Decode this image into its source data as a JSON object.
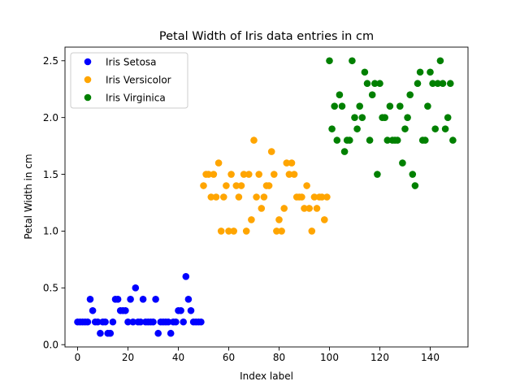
{
  "chart_data": {
    "type": "scatter",
    "title": "Petal Width of Iris data entries in cm",
    "xlabel": "Index label",
    "ylabel": "Petal Width in cm",
    "xlim": [
      -5,
      155
    ],
    "ylim": [
      -0.02,
      2.62
    ],
    "xticks": [
      0,
      20,
      40,
      60,
      80,
      100,
      120,
      140
    ],
    "yticks": [
      0.0,
      0.5,
      1.0,
      1.5,
      2.0,
      2.5
    ],
    "grid": false,
    "legend": "top-left",
    "series": [
      {
        "name": "Iris Setosa",
        "color": "#0000ff",
        "x": [
          0,
          1,
          2,
          3,
          4,
          5,
          6,
          7,
          8,
          9,
          10,
          11,
          12,
          13,
          14,
          15,
          16,
          17,
          18,
          19,
          20,
          21,
          22,
          23,
          24,
          25,
          26,
          27,
          28,
          29,
          30,
          31,
          32,
          33,
          34,
          35,
          36,
          37,
          38,
          39,
          40,
          41,
          42,
          43,
          44,
          45,
          46,
          47,
          48,
          49
        ],
        "y": [
          0.2,
          0.2,
          0.2,
          0.2,
          0.2,
          0.4,
          0.3,
          0.2,
          0.2,
          0.1,
          0.2,
          0.2,
          0.1,
          0.1,
          0.2,
          0.4,
          0.4,
          0.3,
          0.3,
          0.3,
          0.2,
          0.4,
          0.2,
          0.5,
          0.2,
          0.2,
          0.4,
          0.2,
          0.2,
          0.2,
          0.2,
          0.4,
          0.1,
          0.2,
          0.2,
          0.2,
          0.2,
          0.1,
          0.2,
          0.2,
          0.3,
          0.3,
          0.2,
          0.6,
          0.4,
          0.3,
          0.2,
          0.2,
          0.2,
          0.2
        ]
      },
      {
        "name": "Iris Versicolor",
        "color": "#ffa500",
        "x": [
          50,
          51,
          52,
          53,
          54,
          55,
          56,
          57,
          58,
          59,
          60,
          61,
          62,
          63,
          64,
          65,
          66,
          67,
          68,
          69,
          70,
          71,
          72,
          73,
          74,
          75,
          76,
          77,
          78,
          79,
          80,
          81,
          82,
          83,
          84,
          85,
          86,
          87,
          88,
          89,
          90,
          91,
          92,
          93,
          94,
          95,
          96,
          97,
          98,
          99
        ],
        "y": [
          1.4,
          1.5,
          1.5,
          1.3,
          1.5,
          1.3,
          1.6,
          1.0,
          1.3,
          1.4,
          1.0,
          1.5,
          1.0,
          1.4,
          1.3,
          1.4,
          1.5,
          1.0,
          1.5,
          1.1,
          1.8,
          1.3,
          1.5,
          1.2,
          1.3,
          1.4,
          1.4,
          1.7,
          1.5,
          1.0,
          1.1,
          1.0,
          1.2,
          1.6,
          1.5,
          1.6,
          1.5,
          1.3,
          1.3,
          1.3,
          1.2,
          1.4,
          1.2,
          1.0,
          1.3,
          1.2,
          1.3,
          1.3,
          1.1,
          1.3
        ]
      },
      {
        "name": "Iris Virginica",
        "color": "#008000",
        "x": [
          100,
          101,
          102,
          103,
          104,
          105,
          106,
          107,
          108,
          109,
          110,
          111,
          112,
          113,
          114,
          115,
          116,
          117,
          118,
          119,
          120,
          121,
          122,
          123,
          124,
          125,
          126,
          127,
          128,
          129,
          130,
          131,
          132,
          133,
          134,
          135,
          136,
          137,
          138,
          139,
          140,
          141,
          142,
          143,
          144,
          145,
          146,
          147,
          148,
          149
        ],
        "y": [
          2.5,
          1.9,
          2.1,
          1.8,
          2.2,
          2.1,
          1.7,
          1.8,
          1.8,
          2.5,
          2.0,
          1.9,
          2.1,
          2.0,
          2.4,
          2.3,
          1.8,
          2.2,
          2.3,
          1.5,
          2.3,
          2.0,
          2.0,
          1.8,
          2.1,
          1.8,
          1.8,
          1.8,
          2.1,
          1.6,
          1.9,
          2.0,
          2.2,
          1.5,
          1.4,
          2.3,
          2.4,
          1.8,
          1.8,
          2.1,
          2.4,
          2.3,
          1.9,
          2.3,
          2.5,
          2.3,
          1.9,
          2.0,
          2.3,
          1.8
        ]
      }
    ]
  }
}
